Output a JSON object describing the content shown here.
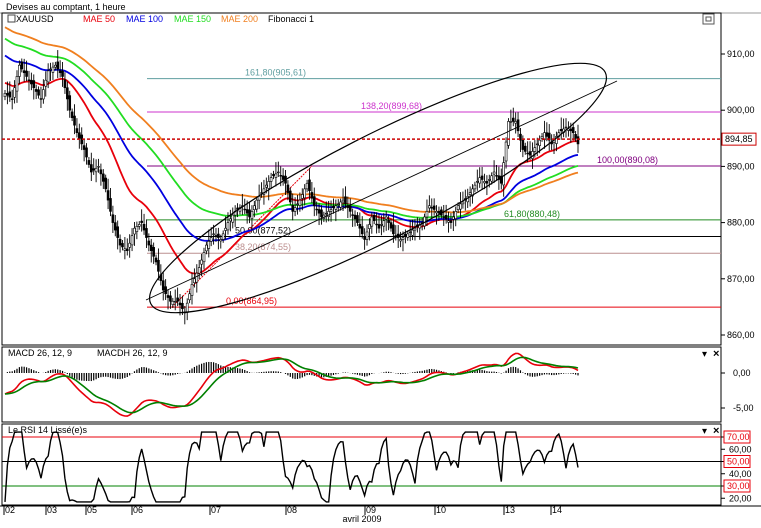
{
  "window_title": "Devises au comptant, 1 heure",
  "legend": {
    "symbol": "XAUUSD",
    "items": [
      {
        "label": "MAE 50",
        "color": "#e8000b"
      },
      {
        "label": "MAE 100",
        "color": "#0000e0"
      },
      {
        "label": "MAE 150",
        "color": "#22dd22"
      },
      {
        "label": "MAE 200",
        "color": "#f07f1f"
      },
      {
        "label": "Fibonacci 1",
        "color": "#000000"
      }
    ]
  },
  "price_axis": {
    "ticks": [
      "910,00",
      "900,00",
      "890,00",
      "880,00",
      "870,00",
      "860,00"
    ],
    "current_price": "894,85"
  },
  "fib_levels": [
    {
      "label": "161,80(905,61)",
      "price": 905.61,
      "color": "#5f9ea0"
    },
    {
      "label": "138,20(899,68)",
      "price": 899.68,
      "color": "#cc33cc"
    },
    {
      "label": "100,00(890,08)",
      "price": 890.08,
      "color": "#800080"
    },
    {
      "label": "61,80(880,48)",
      "price": 880.48,
      "color": "#228b22"
    },
    {
      "label": "50,00(877,52)",
      "price": 877.52,
      "color": "#000000"
    },
    {
      "label": "38,20(874,55)",
      "price": 874.55,
      "color": "#bc8f8f"
    },
    {
      "label": "0,00(864,95)",
      "price": 864.95,
      "color": "#e8000b"
    }
  ],
  "macd": {
    "label1": "MACD 26, 12, 9",
    "label2": "MACDH 26, 12, 9",
    "ticks": [
      "0,00",
      "-5,00"
    ]
  },
  "rsi": {
    "label": "Le RSI 14 Lissé(e)s",
    "ticks": [
      "70,00",
      "60,00",
      "50,00",
      "40,00",
      "30,00",
      "20,00"
    ]
  },
  "x_axis": {
    "days": [
      "02",
      "03",
      "05",
      "06",
      "07",
      "08",
      "09",
      "10",
      "13",
      "14"
    ],
    "month": "avril 2009"
  },
  "chart_data": [
    {
      "type": "candlestick",
      "ylim": [
        857,
        913
      ],
      "series": [
        {
          "name": "XAUUSD",
          "approx_closes": [
            903,
            905,
            906,
            902,
            895,
            888,
            878,
            870,
            866,
            872,
            878,
            880,
            884,
            888,
            887,
            884,
            880,
            881,
            879,
            882,
            880,
            878,
            883,
            884,
            881,
            886,
            889,
            896,
            895,
            893,
            896,
            895
          ]
        },
        {
          "name": "MAE 50",
          "color": "#e8000b"
        },
        {
          "name": "MAE 100",
          "color": "#0000e0"
        },
        {
          "name": "MAE 150",
          "color": "#22dd22"
        },
        {
          "name": "MAE 200",
          "color": "#f07f1f"
        }
      ],
      "hlines": [
        {
          "value": 894.85,
          "label": "894,85",
          "color": "#cc0000"
        }
      ]
    },
    {
      "type": "line",
      "title": "MACD 26, 12, 9",
      "ylim": [
        -7,
        4
      ],
      "series": [
        {
          "name": "MACD 26, 12, 9",
          "color": "#e8000b"
        },
        {
          "name": "MACDH 26, 12, 9",
          "color": "#008000"
        }
      ]
    },
    {
      "type": "line",
      "title": "Le RSI 14 Lissé(e)s",
      "ylim": [
        15,
        75
      ],
      "series": [
        {
          "name": "Le RSI 14 Lissé(e)s",
          "values": [
            33,
            40,
            45,
            38,
            30,
            28,
            35,
            42,
            48,
            55,
            60,
            62,
            58,
            54,
            50,
            48,
            52,
            55,
            50,
            45,
            48,
            52,
            58,
            60,
            56,
            62,
            72,
            63,
            58,
            60,
            65,
            57
          ]
        }
      ],
      "hlines": [
        70,
        50,
        30
      ]
    }
  ]
}
